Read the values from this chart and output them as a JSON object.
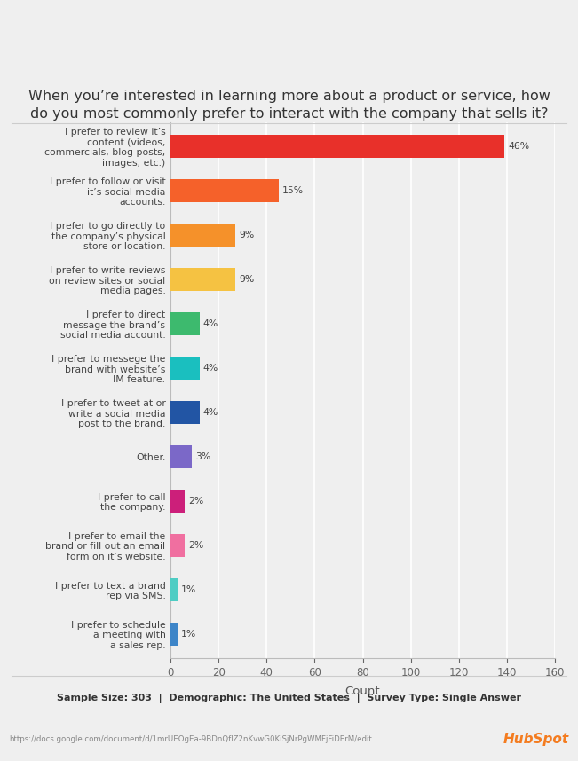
{
  "title": "When you’re interested in learning more about a product or service, how\ndo you most commonly prefer to interact with the company that sells it?",
  "categories": [
    "I prefer to schedule\na meeting with\na sales rep.",
    "I prefer to text a brand\nrep via SMS.",
    "I prefer to email the\nbrand or fill out an email\nform on it’s website.",
    "I prefer to call\nthe company.",
    "Other.",
    "I prefer to tweet at or\nwrite a social media\npost to the brand.",
    "I prefer to messege the\nbrand with website’s\nIM feature.",
    "I prefer to direct\nmessage the brand’s\nsocial media account.",
    "I prefer to write reviews\non review sites or social\nmedia pages.",
    "I prefer to go directly to\nthe company’s physical\nstore or location.",
    "I prefer to follow or visit\nit’s social media\naccounts.",
    "I prefer to review it’s\ncontent (videos,\ncommercials, blog posts,\nimages, etc.)"
  ],
  "values": [
    3,
    3,
    6,
    6,
    9,
    12,
    12,
    12,
    27,
    27,
    45,
    139
  ],
  "percentages": [
    "1%",
    "1%",
    "2%",
    "2%",
    "3%",
    "4%",
    "4%",
    "4%",
    "9%",
    "9%",
    "15%",
    "46%"
  ],
  "colors": [
    "#3d85c8",
    "#4ecdc4",
    "#f06fa0",
    "#cc1f7a",
    "#7b68c8",
    "#2255a4",
    "#1abfbf",
    "#3dba6e",
    "#f5c242",
    "#f5912a",
    "#f5612a",
    "#e8302a"
  ],
  "xlabel": "Count",
  "xlim": [
    0,
    160
  ],
  "xticks": [
    0,
    20,
    40,
    60,
    80,
    100,
    120,
    140,
    160
  ],
  "footer_text": "Sample Size: 303  |  Demographic: The United States  |  Survey Type: Single Answer",
  "url_text": "https://docs.google.com/document/d/1mrUEOgEa-9BDnQflZ2nKvwG0KiSjNrPgWMFjFiDErM/edit",
  "hubspot_text": "HubSpot",
  "background_color": "#efefef",
  "plot_background_color": "#efefef",
  "title_fontsize": 11.5,
  "label_fontsize": 7.8,
  "tick_fontsize": 8.5,
  "footer_fontsize": 8.0
}
